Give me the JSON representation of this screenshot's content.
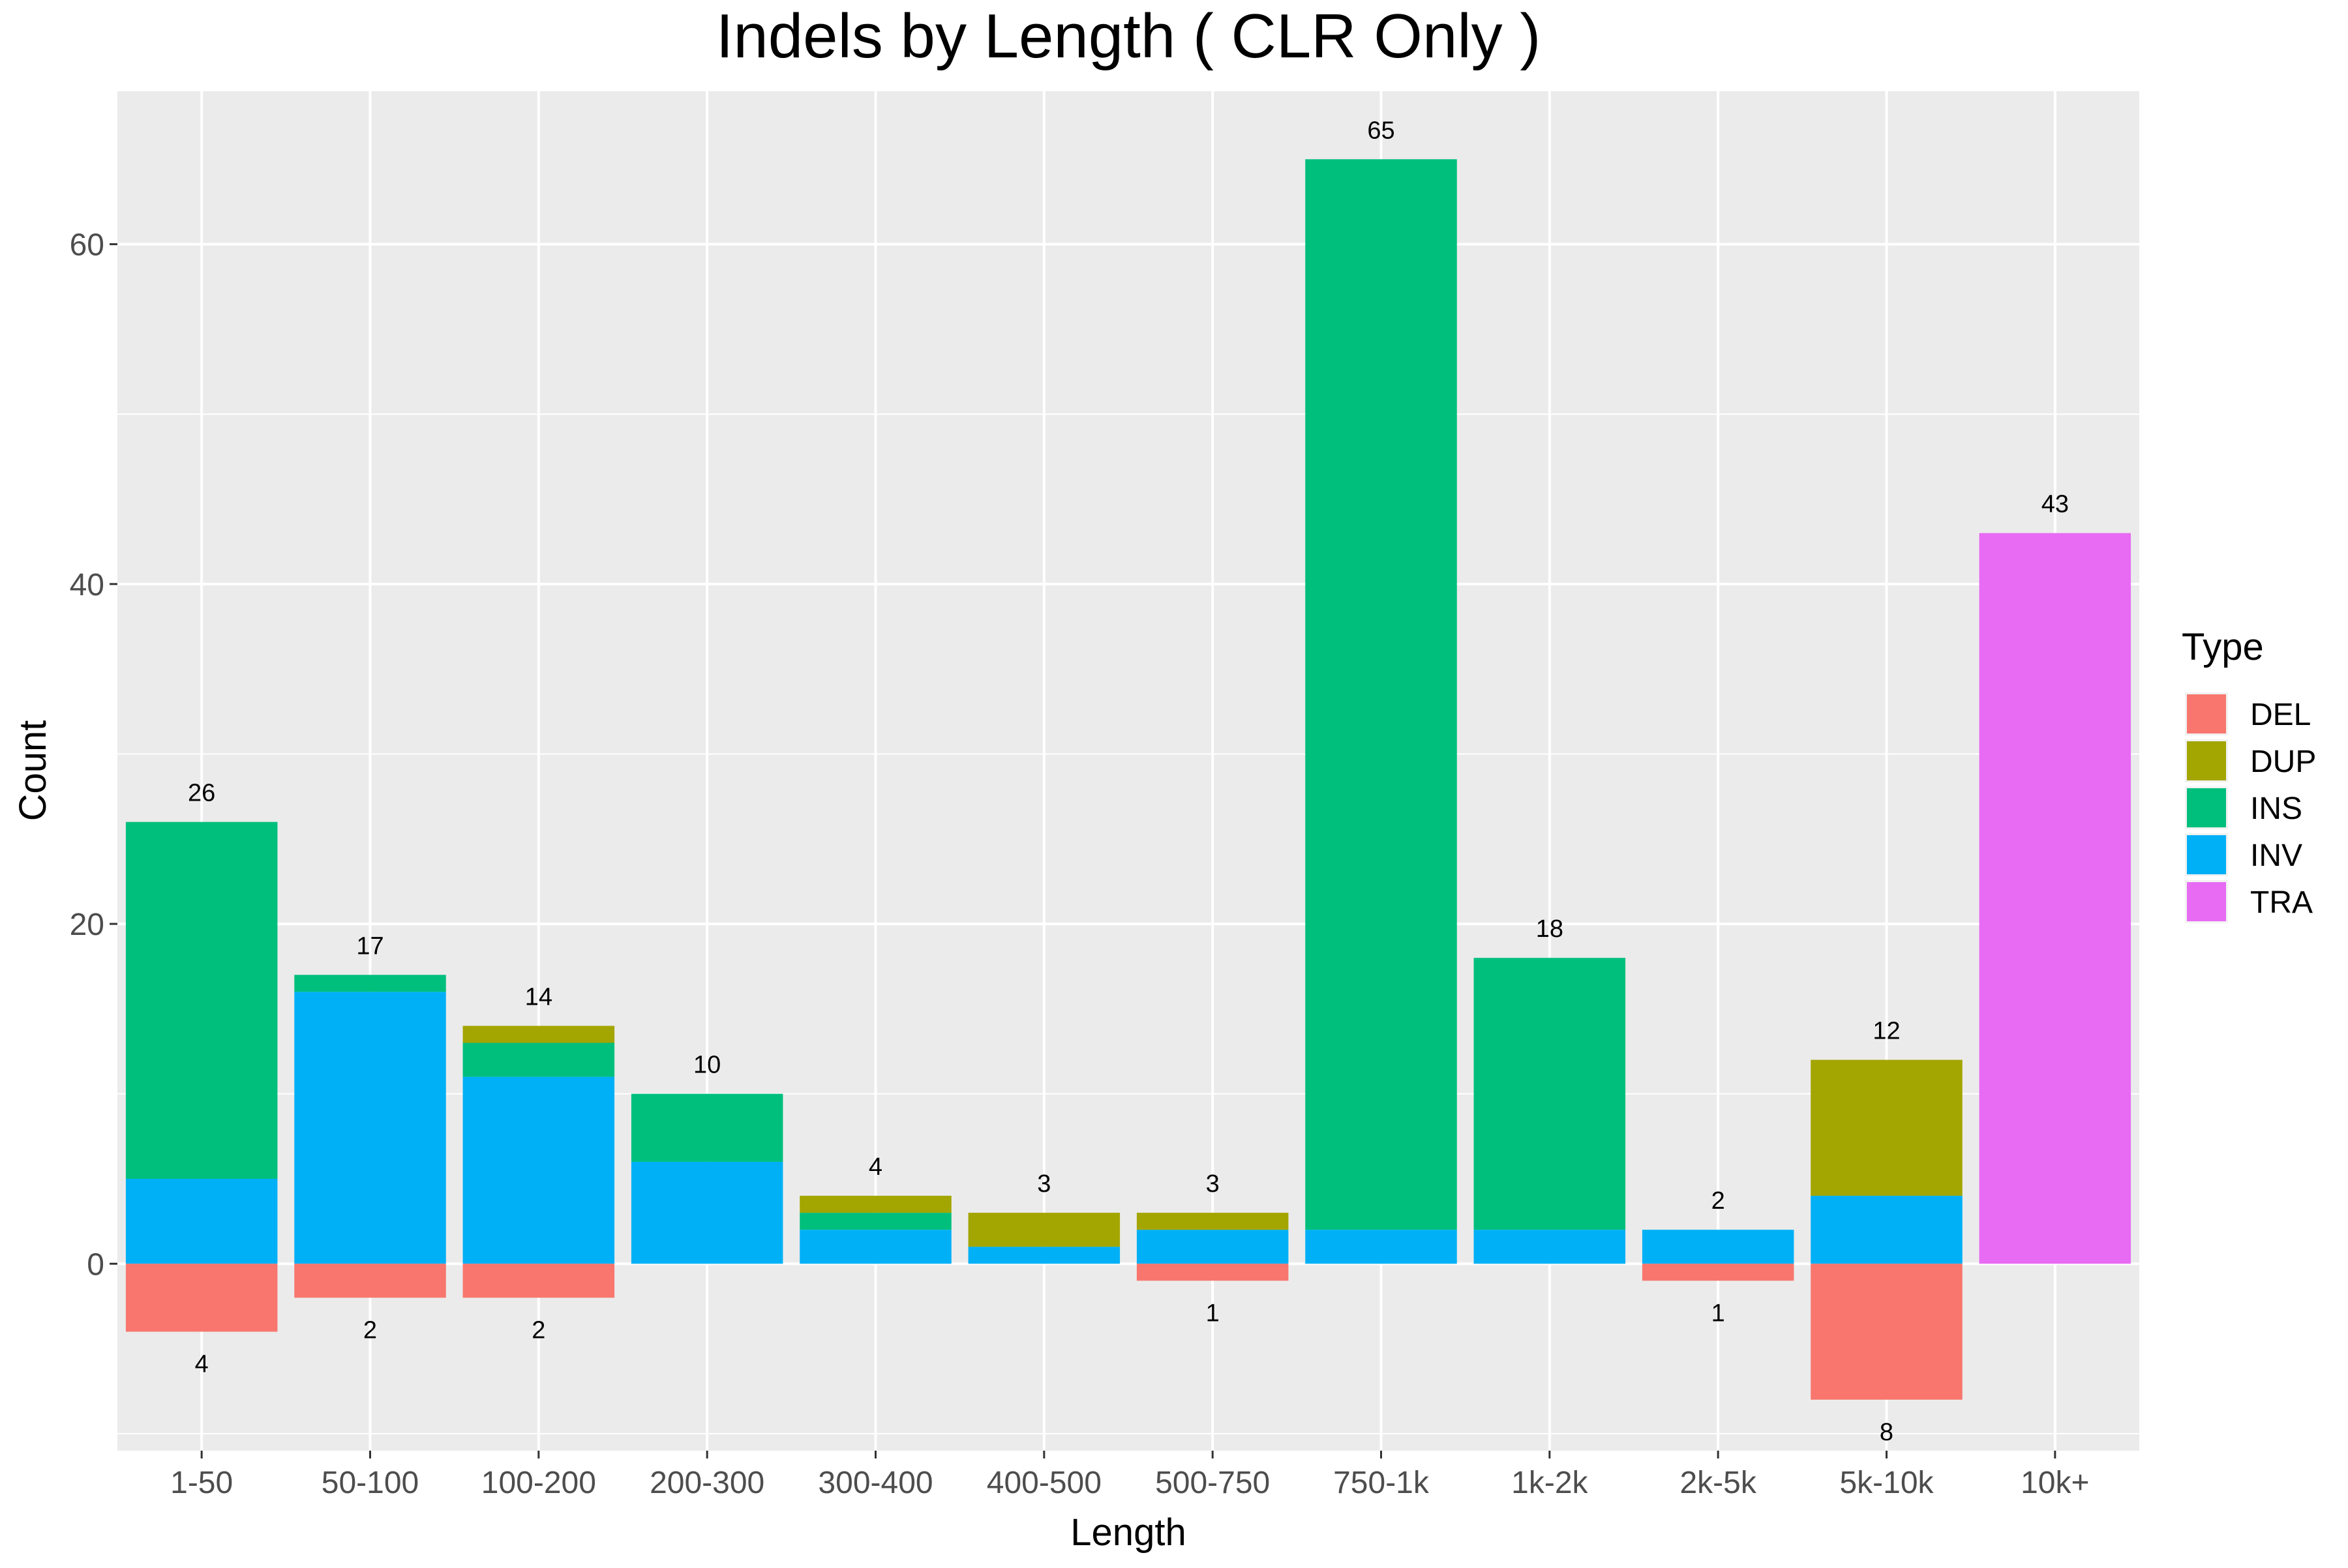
{
  "chart_data": {
    "type": "bar",
    "stacked": true,
    "title": "Indels by Length ( CLR Only )",
    "xlabel": "Length",
    "ylabel": "Count",
    "categories": [
      "1-50",
      "50-100",
      "100-200",
      "200-300",
      "300-400",
      "400-500",
      "500-750",
      "750-1k",
      "1k-2k",
      "2k-5k",
      "5k-10k",
      "10k+"
    ],
    "ylim": [
      -11,
      69
    ],
    "yticks": [
      0,
      20,
      40,
      60
    ],
    "grid": true,
    "background": "#EBEBEB",
    "legend": {
      "title": "Type",
      "position": "right",
      "entries": [
        "DEL",
        "DUP",
        "INS",
        "INV",
        "TRA"
      ]
    },
    "series": [
      {
        "name": "DEL",
        "color": "#F8766D",
        "values": [
          -4,
          -2,
          -2,
          0,
          0,
          0,
          -1,
          0,
          0,
          -1,
          -8,
          0
        ]
      },
      {
        "name": "DUP",
        "color": "#A3A500",
        "values": [
          0,
          0,
          1,
          0,
          1,
          2,
          1,
          0,
          0,
          0,
          8,
          0
        ]
      },
      {
        "name": "INS",
        "color": "#00BF7D",
        "values": [
          21,
          1,
          2,
          4,
          1,
          0,
          0,
          63,
          16,
          0,
          0,
          0
        ]
      },
      {
        "name": "INV",
        "color": "#00B0F6",
        "values": [
          5,
          16,
          11,
          6,
          2,
          1,
          2,
          2,
          2,
          2,
          4,
          0
        ]
      },
      {
        "name": "TRA",
        "color": "#E76BF3",
        "values": [
          0,
          0,
          0,
          0,
          0,
          0,
          0,
          0,
          0,
          0,
          0,
          43
        ]
      }
    ],
    "positive_totals": [
      "26",
      "17",
      "14",
      "10",
      "4",
      "3",
      "3",
      "65",
      "18",
      "2",
      "12",
      "43"
    ],
    "negative_totals": [
      "4",
      "2",
      "2",
      "",
      "",
      "",
      "1",
      "",
      "",
      "1",
      "8",
      ""
    ]
  }
}
